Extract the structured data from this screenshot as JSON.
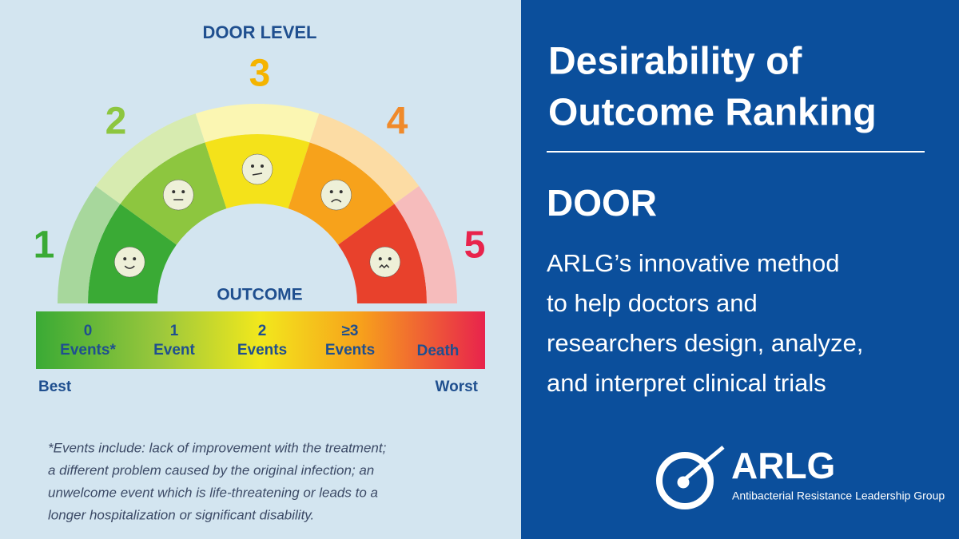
{
  "left": {
    "door_level_title": "DOOR LEVEL",
    "levels": [
      1,
      2,
      3,
      4,
      5
    ],
    "outcome_title": "OUTCOME",
    "outcomes": [
      [
        "0",
        "Events*"
      ],
      [
        "1",
        "Event"
      ],
      [
        "2",
        "Events"
      ],
      [
        "≥3",
        "Events"
      ],
      [
        "Death"
      ]
    ],
    "best": "Best",
    "worst": "Worst",
    "footnote": [
      "*Events include: lack of improvement with the treatment;",
      "a different problem caused by the original infection; an",
      "unwelcome event which is life-threatening or leads to a",
      "longer hospitalization or significant disability."
    ]
  },
  "right": {
    "title": [
      "Desirability of",
      "Outcome Ranking"
    ],
    "subtitle": "DOOR",
    "description": [
      "ARLG’s innovative method",
      "to help doctors and",
      "researchers design, analyze,",
      "and interpret clinical trials"
    ],
    "logo": {
      "name": "ARLG",
      "full_name": "Antibacterial Resistance Leadership Group"
    }
  }
}
